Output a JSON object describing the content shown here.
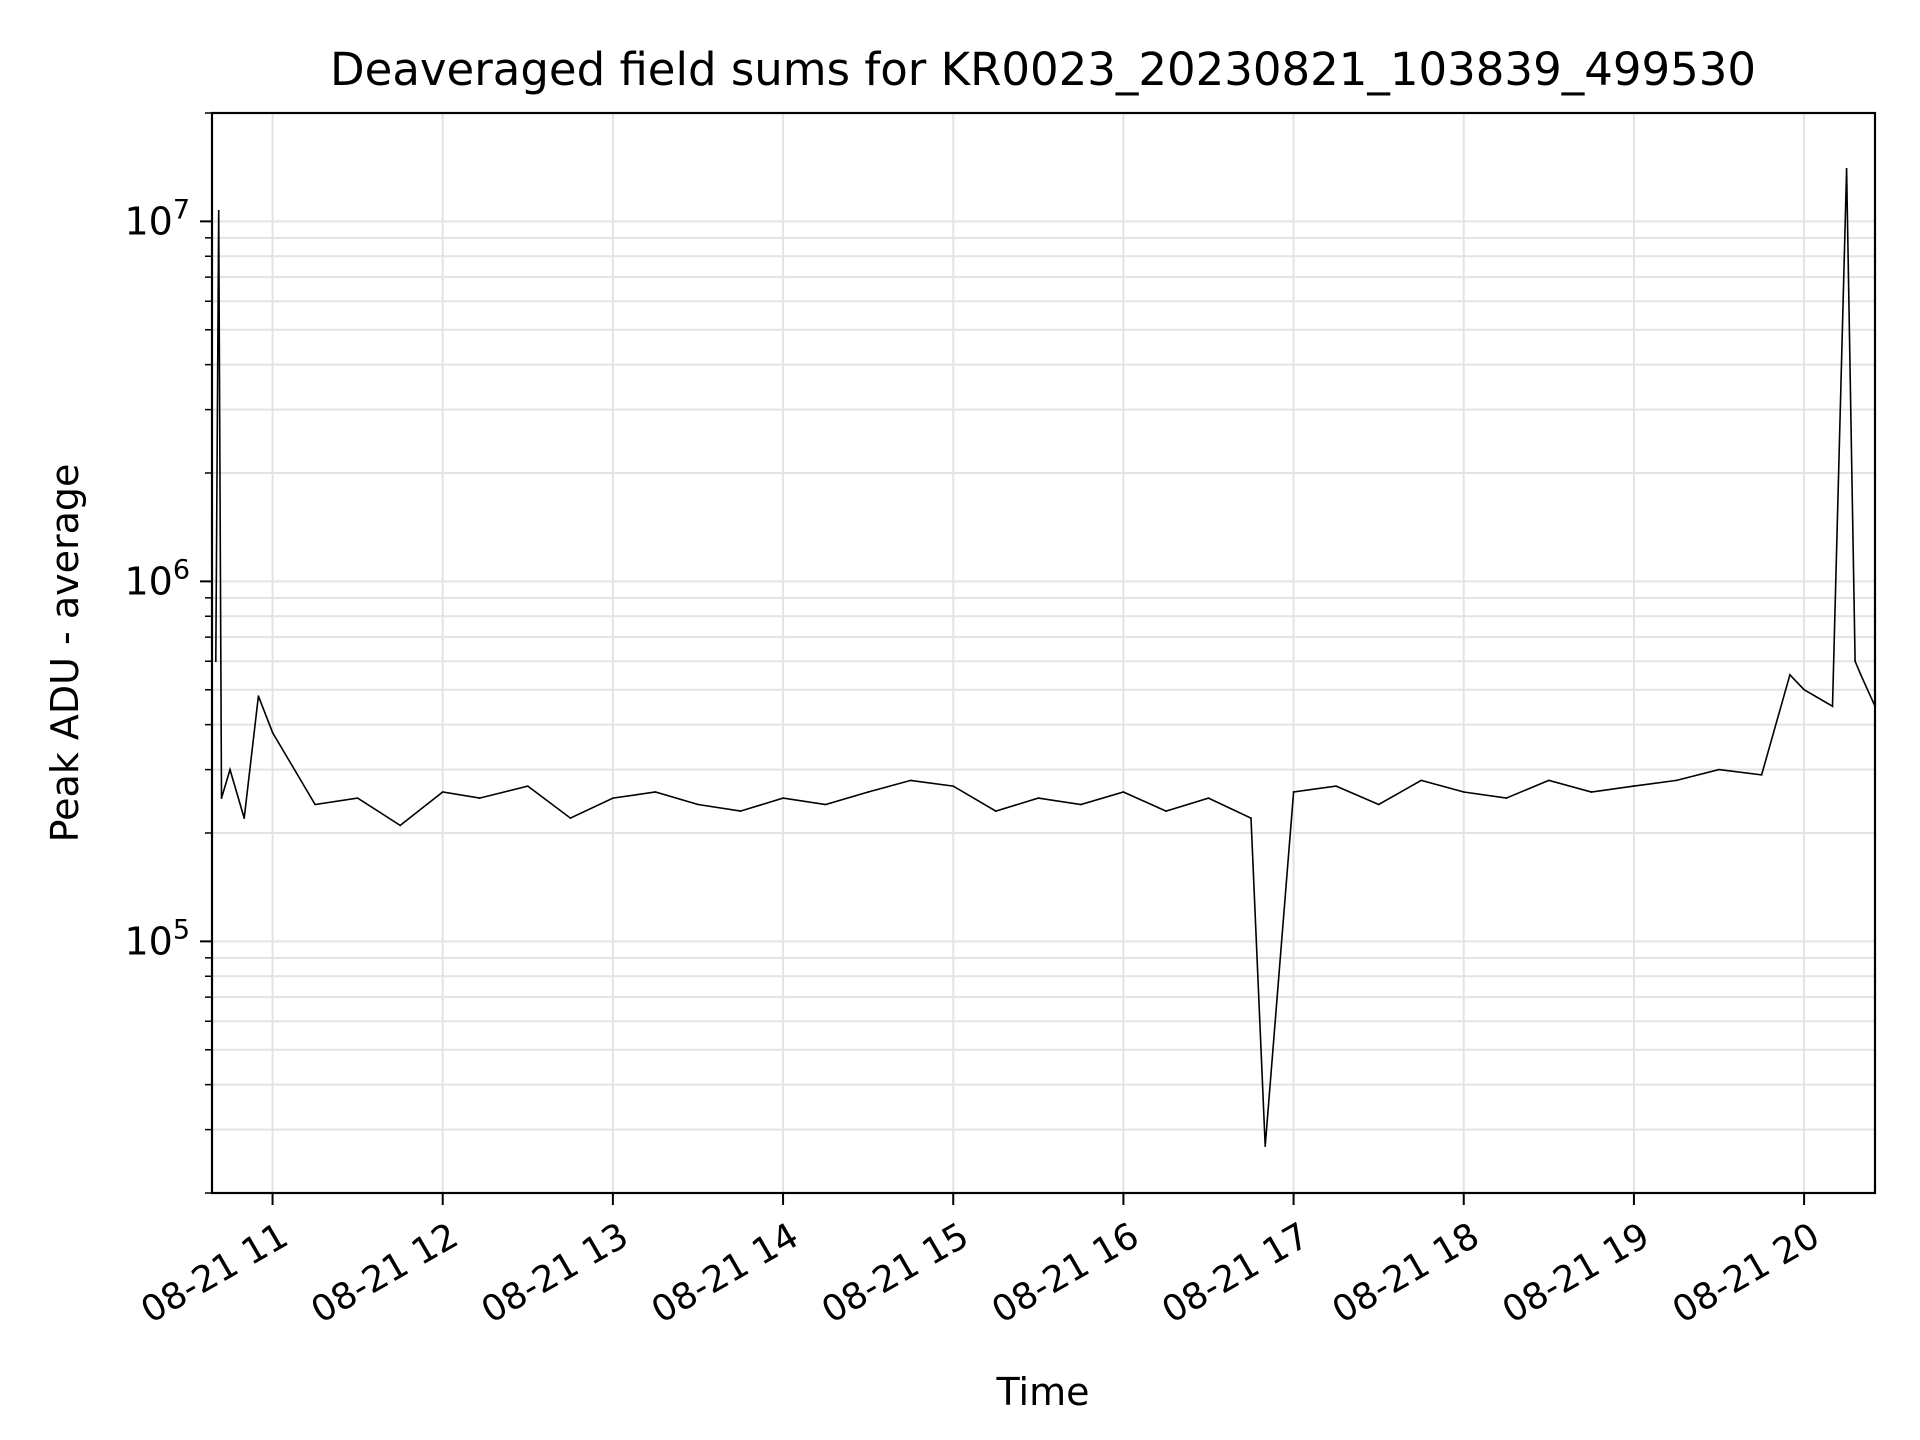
{
  "chart_data": {
    "type": "line",
    "title": "Deaveraged field sums for KR0023_20230821_103839_499530",
    "xlabel": "Time",
    "ylabel": "Peak ADU - average",
    "y_scale": "log",
    "ylim": [
      20000,
      20000000
    ],
    "xlim": [
      "2023-08-21 10:38:39",
      "2023-08-21 20:25:00"
    ],
    "grid": true,
    "legend": "none",
    "line_color": "#000000",
    "x_ticks": [
      {
        "value": "2023-08-21 11:00",
        "label": "08-21 11"
      },
      {
        "value": "2023-08-21 12:00",
        "label": "08-21 12"
      },
      {
        "value": "2023-08-21 13:00",
        "label": "08-21 13"
      },
      {
        "value": "2023-08-21 14:00",
        "label": "08-21 14"
      },
      {
        "value": "2023-08-21 15:00",
        "label": "08-21 15"
      },
      {
        "value": "2023-08-21 16:00",
        "label": "08-21 16"
      },
      {
        "value": "2023-08-21 17:00",
        "label": "08-21 17"
      },
      {
        "value": "2023-08-21 18:00",
        "label": "08-21 18"
      },
      {
        "value": "2023-08-21 19:00",
        "label": "08-21 19"
      },
      {
        "value": "2023-08-21 20:00",
        "label": "08-21 20"
      }
    ],
    "y_ticks": [
      {
        "value": 100000,
        "base": "10",
        "exp": "5"
      },
      {
        "value": 1000000,
        "base": "10",
        "exp": "6"
      },
      {
        "value": 10000000,
        "base": "10",
        "exp": "7"
      }
    ],
    "series": [
      {
        "x": [
          "2023-08-21 10:40",
          "2023-08-21 10:41",
          "2023-08-21 10:42",
          "2023-08-21 10:45",
          "2023-08-21 10:50",
          "2023-08-21 10:55",
          "2023-08-21 11:00",
          "2023-08-21 11:15",
          "2023-08-21 11:30",
          "2023-08-21 11:45",
          "2023-08-21 12:00",
          "2023-08-21 12:13",
          "2023-08-21 12:30",
          "2023-08-21 12:45",
          "2023-08-21 13:00",
          "2023-08-21 13:15",
          "2023-08-21 13:30",
          "2023-08-21 13:45",
          "2023-08-21 14:00",
          "2023-08-21 14:15",
          "2023-08-21 14:30",
          "2023-08-21 14:45",
          "2023-08-21 15:00",
          "2023-08-21 15:15",
          "2023-08-21 15:30",
          "2023-08-21 15:45",
          "2023-08-21 16:00",
          "2023-08-21 16:15",
          "2023-08-21 16:30",
          "2023-08-21 16:45",
          "2023-08-21 16:50",
          "2023-08-21 17:00",
          "2023-08-21 17:15",
          "2023-08-21 17:30",
          "2023-08-21 17:45",
          "2023-08-21 18:00",
          "2023-08-21 18:15",
          "2023-08-21 18:30",
          "2023-08-21 18:45",
          "2023-08-21 19:00",
          "2023-08-21 19:15",
          "2023-08-21 19:30",
          "2023-08-21 19:45",
          "2023-08-21 19:55",
          "2023-08-21 20:00",
          "2023-08-21 20:10",
          "2023-08-21 20:15",
          "2023-08-21 20:18",
          "2023-08-21 20:20",
          "2023-08-21 20:25"
        ],
        "y": [
          600000,
          10700000,
          250000,
          300000,
          220000,
          480000,
          380000,
          240000,
          250000,
          210000,
          260000,
          250000,
          270000,
          220000,
          250000,
          260000,
          240000,
          230000,
          250000,
          240000,
          260000,
          280000,
          270000,
          230000,
          250000,
          240000,
          260000,
          230000,
          250000,
          220000,
          27000,
          260000,
          270000,
          240000,
          280000,
          260000,
          250000,
          280000,
          260000,
          270000,
          280000,
          300000,
          290000,
          550000,
          500000,
          450000,
          14000000,
          600000,
          550000,
          450000
        ]
      }
    ]
  }
}
